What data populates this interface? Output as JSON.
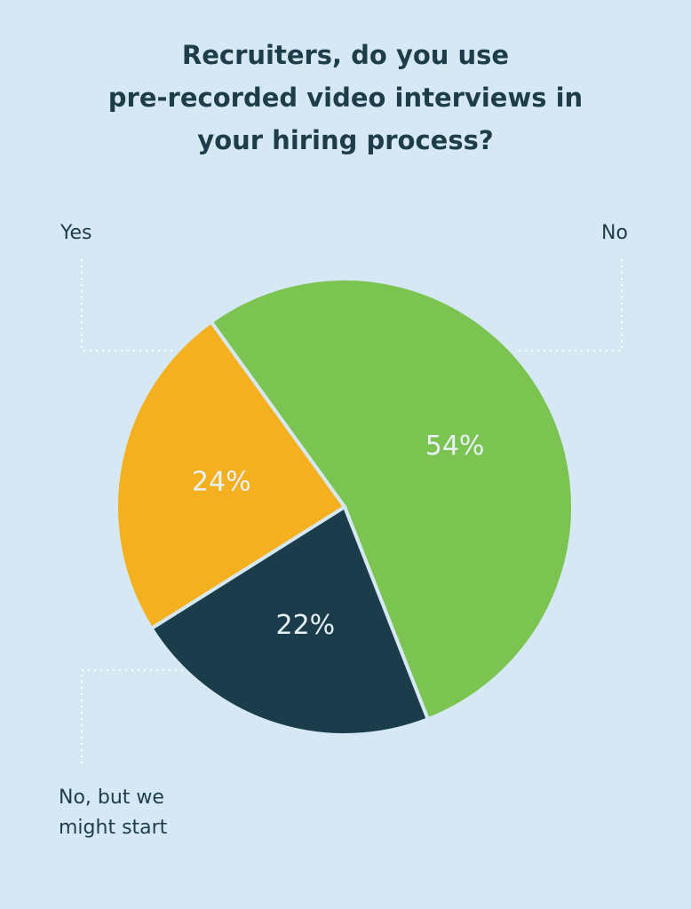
{
  "chart_data": {
    "type": "pie",
    "title": [
      "Recruiters, do you use",
      "pre-recorded video interviews in",
      "your hiring process?"
    ],
    "categories": [
      "No",
      "No, but we might start",
      "Yes"
    ],
    "values": [
      54,
      22,
      24
    ],
    "value_labels": [
      "54%",
      "22%",
      "24%"
    ],
    "colors": [
      "#7cc452",
      "#1a3c4b",
      "#f4b01e"
    ]
  }
}
